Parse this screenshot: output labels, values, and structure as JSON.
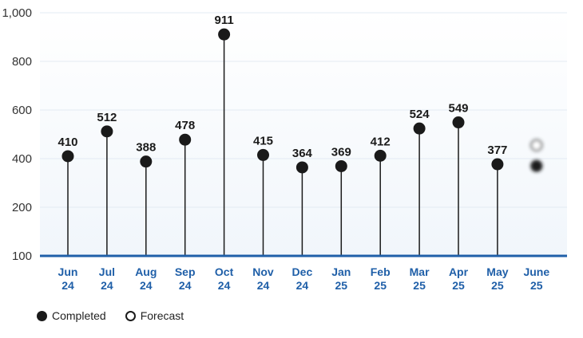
{
  "chart_data": {
    "type": "lollipop",
    "categories": [
      [
        "Jun",
        "24"
      ],
      [
        "Jul",
        "24"
      ],
      [
        "Aug",
        "24"
      ],
      [
        "Sep",
        "24"
      ],
      [
        "Oct",
        "24"
      ],
      [
        "Nov",
        "24"
      ],
      [
        "Dec",
        "24"
      ],
      [
        "Jan",
        "25"
      ],
      [
        "Feb",
        "25"
      ],
      [
        "Mar",
        "25"
      ],
      [
        "Apr",
        "25"
      ],
      [
        "May",
        "25"
      ],
      [
        "June",
        "25"
      ]
    ],
    "series": [
      {
        "name": "Completed",
        "values": [
          410,
          512,
          388,
          478,
          911,
          415,
          364,
          369,
          412,
          524,
          549,
          377,
          370
        ],
        "labels": [
          "410",
          "512",
          "388",
          "478",
          "911",
          "415",
          "364",
          "369",
          "412",
          "524",
          "549",
          "377",
          ""
        ]
      },
      {
        "name": "Forecast",
        "values": [
          null,
          null,
          null,
          null,
          null,
          null,
          null,
          null,
          null,
          null,
          null,
          null,
          455
        ],
        "labels": [
          "",
          "",
          "",
          "",
          "",
          "",
          "",
          "",
          "",
          "",
          "",
          "",
          ""
        ]
      }
    ],
    "yticks": [
      100,
      200,
      400,
      600,
      800,
      1000
    ],
    "ytick_labels": [
      "100",
      "200",
      "400",
      "600",
      "800",
      "1,000"
    ],
    "ylim": [
      100,
      1000
    ],
    "legend": [
      {
        "name": "Completed",
        "style": "filled"
      },
      {
        "name": "Forecast",
        "style": "hollow"
      }
    ],
    "legend_position": "bottom-left",
    "colors": {
      "marker": "#1a1a1a",
      "axis": "#1f5fa8",
      "tick_text": "#1f5fa8",
      "grid": "#e3ebf3",
      "plot_bg_bottom": "#f4f8fc"
    }
  }
}
